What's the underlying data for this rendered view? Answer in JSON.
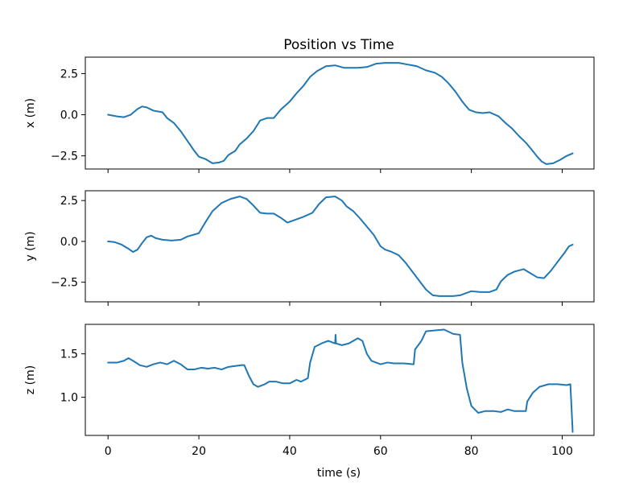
{
  "chart_data": {
    "type": "line",
    "title": "Position vs Time",
    "xlabel": "time (s)",
    "xlim": [
      -5,
      107
    ],
    "x_ticks": [
      0,
      20,
      40,
      60,
      80,
      100
    ],
    "color": "#1f77b4",
    "subplots": [
      {
        "ylabel": "x (m)",
        "ylim": [
          -3.3,
          3.5
        ],
        "y_ticks": [
          2.5,
          0.0,
          -2.5
        ],
        "y_tick_labels": [
          "2.5",
          "0.0",
          "−2.5"
        ],
        "show_x_tick_labels": false,
        "points": [
          [
            0,
            0.0
          ],
          [
            2,
            -0.1
          ],
          [
            3.5,
            -0.15
          ],
          [
            5,
            0.0
          ],
          [
            6.5,
            0.35
          ],
          [
            7.5,
            0.5
          ],
          [
            8.5,
            0.45
          ],
          [
            10,
            0.25
          ],
          [
            12,
            0.15
          ],
          [
            13,
            -0.2
          ],
          [
            14.5,
            -0.5
          ],
          [
            16,
            -1.0
          ],
          [
            18,
            -1.8
          ],
          [
            19,
            -2.2
          ],
          [
            20,
            -2.55
          ],
          [
            21.5,
            -2.7
          ],
          [
            23,
            -2.95
          ],
          [
            24.5,
            -2.9
          ],
          [
            25.5,
            -2.8
          ],
          [
            26.5,
            -2.45
          ],
          [
            28,
            -2.2
          ],
          [
            29,
            -1.8
          ],
          [
            30.5,
            -1.45
          ],
          [
            32,
            -1.0
          ],
          [
            33.5,
            -0.35
          ],
          [
            35,
            -0.2
          ],
          [
            36.5,
            -0.2
          ],
          [
            38,
            0.3
          ],
          [
            40,
            0.8
          ],
          [
            41.5,
            1.3
          ],
          [
            43,
            1.75
          ],
          [
            44.5,
            2.3
          ],
          [
            46,
            2.65
          ],
          [
            48,
            2.95
          ],
          [
            50,
            3.0
          ],
          [
            52,
            2.85
          ],
          [
            55,
            2.85
          ],
          [
            57,
            2.9
          ],
          [
            59,
            3.1
          ],
          [
            61,
            3.15
          ],
          [
            64,
            3.15
          ],
          [
            66,
            3.05
          ],
          [
            68,
            2.95
          ],
          [
            70,
            2.7
          ],
          [
            72,
            2.55
          ],
          [
            73.5,
            2.3
          ],
          [
            75,
            1.9
          ],
          [
            76.5,
            1.4
          ],
          [
            78,
            0.8
          ],
          [
            79.5,
            0.3
          ],
          [
            81,
            0.15
          ],
          [
            82.5,
            0.1
          ],
          [
            84,
            0.15
          ],
          [
            86,
            -0.1
          ],
          [
            87.5,
            -0.5
          ],
          [
            89,
            -0.85
          ],
          [
            90.5,
            -1.3
          ],
          [
            92,
            -1.7
          ],
          [
            93.5,
            -2.2
          ],
          [
            94.5,
            -2.55
          ],
          [
            95.5,
            -2.85
          ],
          [
            96.5,
            -3.0
          ],
          [
            98,
            -2.95
          ],
          [
            99.5,
            -2.75
          ],
          [
            101,
            -2.5
          ],
          [
            102.3,
            -2.35
          ]
        ]
      },
      {
        "ylabel": "y (m)",
        "ylim": [
          -3.7,
          3.1
        ],
        "y_ticks": [
          2.5,
          0.0,
          -2.5
        ],
        "y_tick_labels": [
          "2.5",
          "0.0",
          "−2.5"
        ],
        "show_x_tick_labels": false,
        "points": [
          [
            0,
            0.0
          ],
          [
            1.5,
            -0.05
          ],
          [
            3,
            -0.2
          ],
          [
            4.5,
            -0.45
          ],
          [
            5.5,
            -0.65
          ],
          [
            6.5,
            -0.5
          ],
          [
            7.5,
            -0.1
          ],
          [
            8.5,
            0.25
          ],
          [
            9.5,
            0.35
          ],
          [
            10.5,
            0.2
          ],
          [
            12,
            0.1
          ],
          [
            14,
            0.05
          ],
          [
            16,
            0.1
          ],
          [
            17.5,
            0.3
          ],
          [
            20,
            0.5
          ],
          [
            21.5,
            1.2
          ],
          [
            23,
            1.85
          ],
          [
            25,
            2.35
          ],
          [
            27,
            2.6
          ],
          [
            29,
            2.75
          ],
          [
            30.5,
            2.6
          ],
          [
            32,
            2.2
          ],
          [
            33.5,
            1.75
          ],
          [
            35,
            1.7
          ],
          [
            36.5,
            1.7
          ],
          [
            38,
            1.45
          ],
          [
            39.5,
            1.15
          ],
          [
            41,
            1.3
          ],
          [
            43,
            1.5
          ],
          [
            45,
            1.75
          ],
          [
            46.5,
            2.3
          ],
          [
            48,
            2.7
          ],
          [
            50,
            2.75
          ],
          [
            51.5,
            2.5
          ],
          [
            52.5,
            2.15
          ],
          [
            54,
            1.85
          ],
          [
            55.5,
            1.4
          ],
          [
            57,
            0.9
          ],
          [
            58.5,
            0.4
          ],
          [
            60,
            -0.3
          ],
          [
            61,
            -0.5
          ],
          [
            62.5,
            -0.65
          ],
          [
            64,
            -0.85
          ],
          [
            65.5,
            -1.3
          ],
          [
            67,
            -1.85
          ],
          [
            68.5,
            -2.4
          ],
          [
            70,
            -2.95
          ],
          [
            71.5,
            -3.3
          ],
          [
            73,
            -3.35
          ],
          [
            74.5,
            -3.35
          ],
          [
            76,
            -3.35
          ],
          [
            77.5,
            -3.3
          ],
          [
            79,
            -3.15
          ],
          [
            80,
            -3.05
          ],
          [
            82,
            -3.1
          ],
          [
            84,
            -3.1
          ],
          [
            85.5,
            -2.95
          ],
          [
            86.5,
            -2.45
          ],
          [
            88,
            -2.05
          ],
          [
            89.5,
            -1.85
          ],
          [
            91.5,
            -1.7
          ],
          [
            93,
            -1.95
          ],
          [
            94.5,
            -2.2
          ],
          [
            96,
            -2.25
          ],
          [
            97.5,
            -1.8
          ],
          [
            99,
            -1.25
          ],
          [
            100.5,
            -0.7
          ],
          [
            101.5,
            -0.3
          ],
          [
            102.3,
            -0.2
          ]
        ]
      },
      {
        "ylabel": "z (m)",
        "ylim": [
          0.56,
          1.84
        ],
        "y_ticks": [
          1.5,
          1.0
        ],
        "y_tick_labels": [
          "1.5",
          "1.0"
        ],
        "show_x_tick_labels": true,
        "points": [
          [
            0,
            1.4
          ],
          [
            2,
            1.4
          ],
          [
            3.5,
            1.42
          ],
          [
            4.5,
            1.45
          ],
          [
            5.5,
            1.42
          ],
          [
            7,
            1.37
          ],
          [
            8.5,
            1.35
          ],
          [
            10,
            1.38
          ],
          [
            11.5,
            1.4
          ],
          [
            13,
            1.38
          ],
          [
            14.5,
            1.42
          ],
          [
            16,
            1.38
          ],
          [
            17.5,
            1.32
          ],
          [
            19,
            1.32
          ],
          [
            20.5,
            1.34
          ],
          [
            22,
            1.33
          ],
          [
            23.5,
            1.34
          ],
          [
            25,
            1.32
          ],
          [
            26.5,
            1.35
          ],
          [
            28,
            1.36
          ],
          [
            29.5,
            1.37
          ],
          [
            30,
            1.37
          ],
          [
            31,
            1.25
          ],
          [
            32,
            1.15
          ],
          [
            33,
            1.12
          ],
          [
            34.5,
            1.15
          ],
          [
            35.5,
            1.18
          ],
          [
            37,
            1.18
          ],
          [
            38.5,
            1.16
          ],
          [
            40,
            1.16
          ],
          [
            41.5,
            1.2
          ],
          [
            42.5,
            1.18
          ],
          [
            44,
            1.22
          ],
          [
            44.5,
            1.4
          ],
          [
            45.5,
            1.58
          ],
          [
            47,
            1.62
          ],
          [
            48.5,
            1.65
          ],
          [
            49.5,
            1.63
          ],
          [
            50,
            1.62
          ],
          [
            50.1,
            1.72
          ],
          [
            50.2,
            1.62
          ],
          [
            51.5,
            1.6
          ],
          [
            53,
            1.62
          ],
          [
            54,
            1.65
          ],
          [
            55,
            1.68
          ],
          [
            56,
            1.65
          ],
          [
            57,
            1.5
          ],
          [
            58,
            1.42
          ],
          [
            59,
            1.4
          ],
          [
            60,
            1.38
          ],
          [
            61.5,
            1.4
          ],
          [
            63,
            1.39
          ],
          [
            65,
            1.39
          ],
          [
            67.3,
            1.38
          ],
          [
            67.6,
            1.55
          ],
          [
            69,
            1.65
          ],
          [
            70,
            1.76
          ],
          [
            72,
            1.77
          ],
          [
            74,
            1.78
          ],
          [
            76,
            1.73
          ],
          [
            77.5,
            1.72
          ],
          [
            78,
            1.4
          ],
          [
            79,
            1.1
          ],
          [
            80,
            0.9
          ],
          [
            81.5,
            0.82
          ],
          [
            83,
            0.84
          ],
          [
            85,
            0.84
          ],
          [
            86.5,
            0.83
          ],
          [
            88,
            0.86
          ],
          [
            89.5,
            0.84
          ],
          [
            91,
            0.84
          ],
          [
            92,
            0.84
          ],
          [
            92.3,
            0.95
          ],
          [
            93.5,
            1.05
          ],
          [
            95,
            1.12
          ],
          [
            97,
            1.15
          ],
          [
            99,
            1.15
          ],
          [
            101,
            1.14
          ],
          [
            101.8,
            1.15
          ],
          [
            102.2,
            0.72
          ],
          [
            102.3,
            0.6
          ]
        ]
      }
    ]
  }
}
